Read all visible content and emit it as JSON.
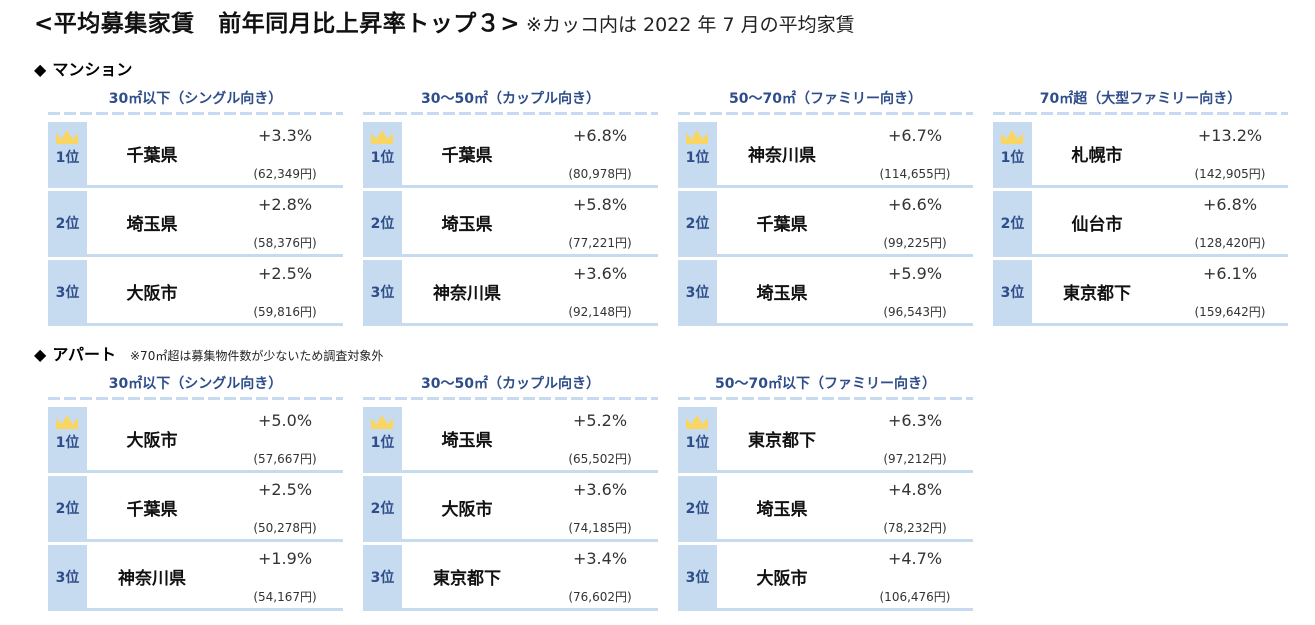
{
  "title": {
    "main": "<平均募集家賃　前年同月比上昇率トップ３>",
    "note": "※カッコ内は 2022 年 7 月の平均家賃"
  },
  "icons": {
    "section_marker": "diamond-icon",
    "first_place": "crown-icon"
  },
  "colors": {
    "rank_bg": "#c6dbef",
    "header_text": "#2e4d8a",
    "crown": "#f9d564"
  },
  "mansion": {
    "label": "マンション",
    "diamond": "◆",
    "groups": [
      {
        "header": "30㎡以下（シングル向き）",
        "rows": [
          {
            "rank": "1位",
            "city": "千葉県",
            "pct": "+3.3%",
            "rent": "(62,349円)"
          },
          {
            "rank": "2位",
            "city": "埼玉県",
            "pct": "+2.8%",
            "rent": "(58,376円)"
          },
          {
            "rank": "3位",
            "city": "大阪市",
            "pct": "+2.5%",
            "rent": "(59,816円)"
          }
        ]
      },
      {
        "header": "30～50㎡（カップル向き）",
        "rows": [
          {
            "rank": "1位",
            "city": "千葉県",
            "pct": "+6.8%",
            "rent": "(80,978円)"
          },
          {
            "rank": "2位",
            "city": "埼玉県",
            "pct": "+5.8%",
            "rent": "(77,221円)"
          },
          {
            "rank": "3位",
            "city": "神奈川県",
            "pct": "+3.6%",
            "rent": "(92,148円)"
          }
        ]
      },
      {
        "header": "50～70㎡（ファミリー向き）",
        "rows": [
          {
            "rank": "1位",
            "city": "神奈川県",
            "pct": "+6.7%",
            "rent": "(114,655円)"
          },
          {
            "rank": "2位",
            "city": "千葉県",
            "pct": "+6.6%",
            "rent": "(99,225円)"
          },
          {
            "rank": "3位",
            "city": "埼玉県",
            "pct": "+5.9%",
            "rent": "(96,543円)"
          }
        ]
      },
      {
        "header": "70㎡超（大型ファミリー向き）",
        "rows": [
          {
            "rank": "1位",
            "city": "札幌市",
            "pct": "+13.2%",
            "rent": "(142,905円)"
          },
          {
            "rank": "2位",
            "city": "仙台市",
            "pct": "+6.8%",
            "rent": "(128,420円)"
          },
          {
            "rank": "3位",
            "city": "東京都下",
            "pct": "+6.1%",
            "rent": "(159,642円)"
          }
        ]
      }
    ]
  },
  "apartment": {
    "label": "アパート",
    "diamond": "◆",
    "note": "※70㎡超は募集物件数が少ないため調査対象外",
    "groups": [
      {
        "header": "30㎡以下（シングル向き）",
        "rows": [
          {
            "rank": "1位",
            "city": "大阪市",
            "pct": "+5.0%",
            "rent": "(57,667円)"
          },
          {
            "rank": "2位",
            "city": "千葉県",
            "pct": "+2.5%",
            "rent": "(50,278円)"
          },
          {
            "rank": "3位",
            "city": "神奈川県",
            "pct": "+1.9%",
            "rent": "(54,167円)"
          }
        ]
      },
      {
        "header": "30～50㎡（カップル向き）",
        "rows": [
          {
            "rank": "1位",
            "city": "埼玉県",
            "pct": "+5.2%",
            "rent": "(65,502円)"
          },
          {
            "rank": "2位",
            "city": "大阪市",
            "pct": "+3.6%",
            "rent": "(74,185円)"
          },
          {
            "rank": "3位",
            "city": "東京都下",
            "pct": "+3.4%",
            "rent": "(76,602円)"
          }
        ]
      },
      {
        "header": "50～70㎡以下（ファミリー向き）",
        "rows": [
          {
            "rank": "1位",
            "city": "東京都下",
            "pct": "+6.3%",
            "rent": "(97,212円)"
          },
          {
            "rank": "2位",
            "city": "埼玉県",
            "pct": "+4.8%",
            "rent": "(78,232円)"
          },
          {
            "rank": "3位",
            "city": "大阪市",
            "pct": "+4.7%",
            "rent": "(106,476円)"
          }
        ]
      }
    ]
  }
}
